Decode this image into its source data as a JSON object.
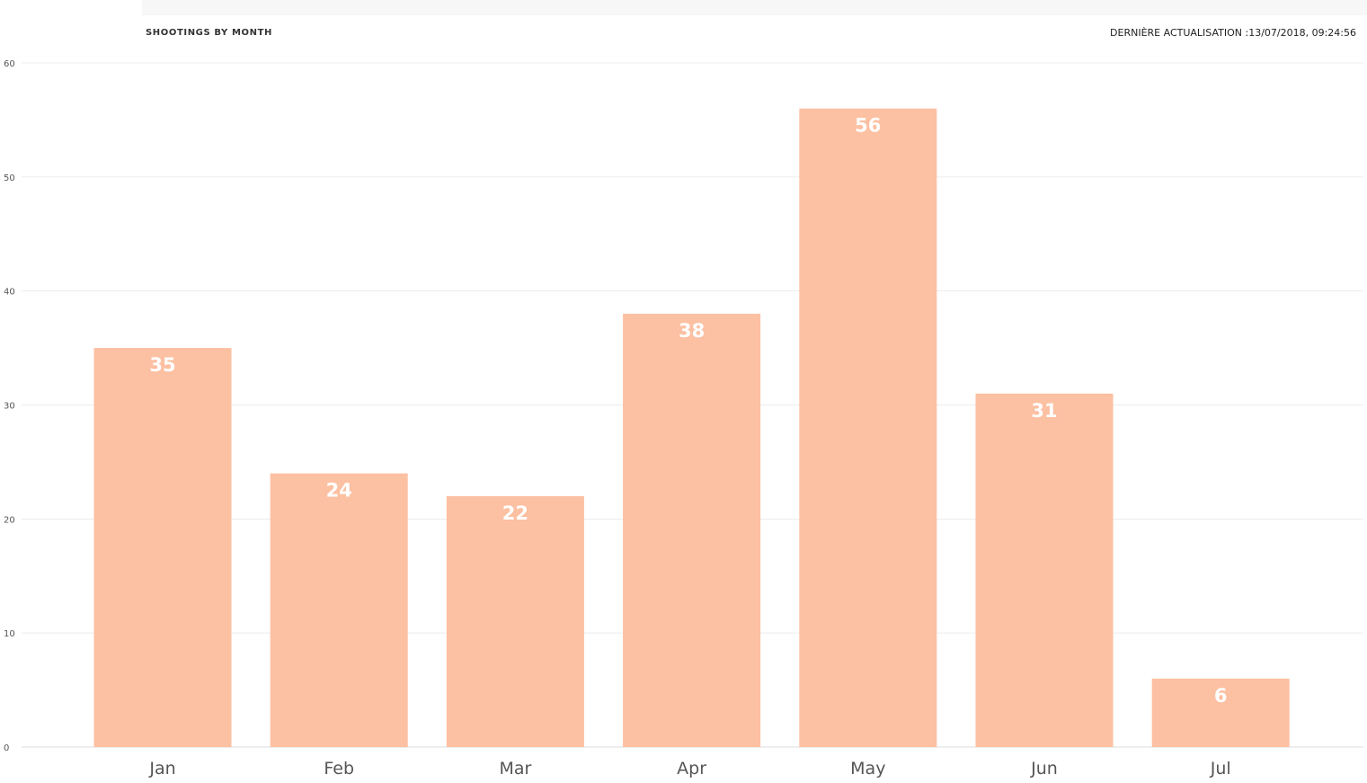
{
  "header": {
    "title": "SHOOTINGS BY MONTH",
    "refresh_text": "DERNIÈRE ACTUALISATION :13/07/2018, 09:24:56"
  },
  "chart_data": {
    "type": "bar",
    "categories": [
      "Jan",
      "Feb",
      "Mar",
      "Apr",
      "May",
      "Jun",
      "Jul"
    ],
    "values": [
      35,
      24,
      22,
      38,
      56,
      31,
      6
    ],
    "title": "SHOOTINGS BY MONTH",
    "xlabel": "",
    "ylabel": "",
    "ylim": [
      0,
      60
    ],
    "yticks": [
      0,
      10,
      20,
      30,
      40,
      50,
      60
    ],
    "grid": true,
    "data_labels": true,
    "bar_color": "#fcc0a2",
    "label_color": "#ffffff"
  }
}
